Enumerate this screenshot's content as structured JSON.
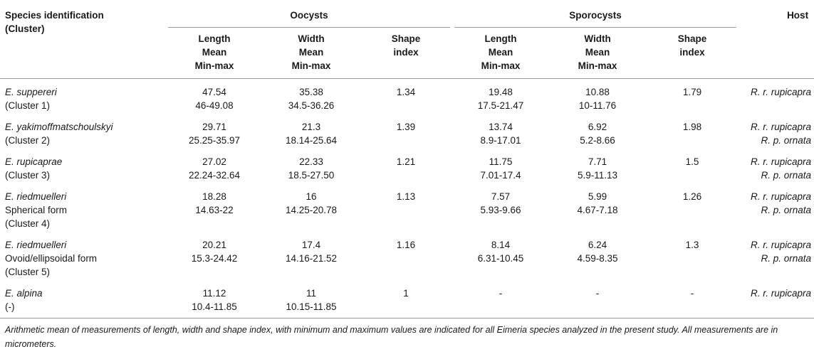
{
  "headers": {
    "species_col": [
      "Species identification",
      "(Cluster)"
    ],
    "oocysts_group": "Oocysts",
    "sporocysts_group": "Sporocysts",
    "host_col": "Host",
    "length": [
      "Length",
      "Mean",
      "Min-max"
    ],
    "width": [
      "Width",
      "Mean",
      "Min-max"
    ],
    "shape": [
      "Shape",
      "index"
    ]
  },
  "rows": [
    {
      "species": [
        "E. suppereri",
        "(Cluster 1)"
      ],
      "oo_length": [
        "47.54",
        "46-49.08"
      ],
      "oo_width": [
        "35.38",
        "34.5-36.26"
      ],
      "oo_shape": "1.34",
      "sp_length": [
        "19.48",
        "17.5-21.47"
      ],
      "sp_width": [
        "10.88",
        "10-11.76"
      ],
      "sp_shape": "1.79",
      "host": [
        "R. r. rupicapra"
      ]
    },
    {
      "species": [
        "E. yakimoffmatschoulskyi",
        "(Cluster 2)"
      ],
      "oo_length": [
        "29.71",
        "25.25-35.97"
      ],
      "oo_width": [
        "21.3",
        "18.14-25.64"
      ],
      "oo_shape": "1.39",
      "sp_length": [
        "13.74",
        "8.9-17.01"
      ],
      "sp_width": [
        "6.92",
        "5.2-8.66"
      ],
      "sp_shape": "1.98",
      "host": [
        "R. r. rupicapra",
        "R. p. ornata"
      ]
    },
    {
      "species": [
        "E. rupicaprae",
        "(Cluster 3)"
      ],
      "oo_length": [
        "27.02",
        "22.24-32.64"
      ],
      "oo_width": [
        "22.33",
        "18.5-27.50"
      ],
      "oo_shape": "1.21",
      "sp_length": [
        "11.75",
        "7.01-17.4"
      ],
      "sp_width": [
        "7.71",
        "5.9-11.13"
      ],
      "sp_shape": "1.5",
      "host": [
        "R. r. rupicapra",
        "R. p. ornata"
      ]
    },
    {
      "species": [
        "E. riedmuelleri",
        "Spherical form",
        "(Cluster 4)"
      ],
      "oo_length": [
        "18.28",
        "14.63-22"
      ],
      "oo_width": [
        "16",
        "14.25-20.78"
      ],
      "oo_shape": "1.13",
      "sp_length": [
        "7.57",
        "5.93-9.66"
      ],
      "sp_width": [
        "5.99",
        "4.67-7.18"
      ],
      "sp_shape": "1.26",
      "host": [
        "R. r. rupicapra",
        "R. p. ornata"
      ]
    },
    {
      "species": [
        "E. riedmuelleri",
        "Ovoid/ellipsoidal form",
        "(Cluster 5)"
      ],
      "oo_length": [
        "20.21",
        "15.3-24.42"
      ],
      "oo_width": [
        "17.4",
        "14.16-21.52"
      ],
      "oo_shape": "1.16",
      "sp_length": [
        "8.14",
        "6.31-10.45"
      ],
      "sp_width": [
        "6.24",
        "4.59-8.35"
      ],
      "sp_shape": "1.3",
      "host": [
        "R. r. rupicapra",
        "R. p. ornata"
      ]
    },
    {
      "species": [
        "E. alpina",
        "(-)"
      ],
      "oo_length": [
        "11.12",
        "10.4-11.85"
      ],
      "oo_width": [
        "11",
        "10.15-11.85"
      ],
      "oo_shape": "1",
      "sp_length": [
        "-"
      ],
      "sp_width": [
        "-"
      ],
      "sp_shape": "-",
      "host": [
        "R. r. rupicapra"
      ]
    }
  ],
  "footnote": "Arithmetic mean of measurements of length, width and shape index, with minimum and maximum values are indicated for all Eimeria species analyzed in the present study. All measurements are in micrometers."
}
